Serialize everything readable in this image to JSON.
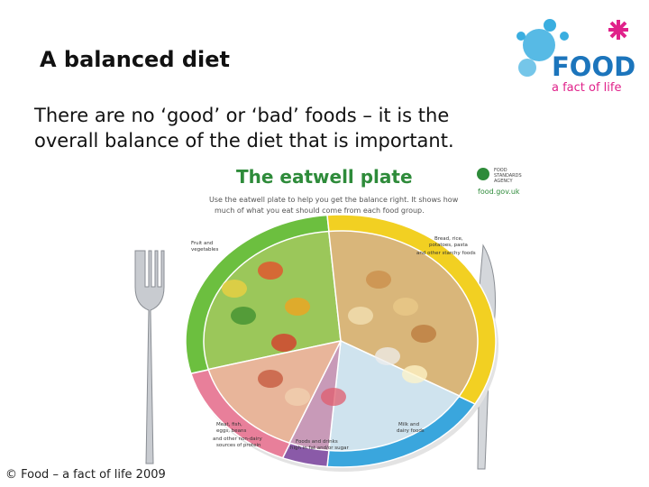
{
  "slide": {
    "title": "A balanced diet",
    "body": [
      "There are no  ‘good’  or  ‘bad’  foods – it is the",
      "overall balance of the diet that is important."
    ],
    "logo": {
      "word": "FOOD",
      "tagline": "a fact of life"
    },
    "plate": {
      "heading": "The eatwell plate",
      "intro": [
        "Use the eatwell plate to help you get the balance right. It shows how",
        "much of what you eat should come from each food group."
      ],
      "agency": [
        "FOOD",
        "STANDARDS",
        "AGENCY"
      ],
      "website": "food.gov.uk",
      "groups": {
        "fruit_veg": [
          "Fruit and",
          "vegetables"
        ],
        "starchy": [
          "Bread, rice,",
          "potatoes, pasta",
          "and other starchy foods"
        ],
        "protein": [
          "Meat, fish,",
          "eggs, beans",
          "and other non-dairy",
          "sources of protein"
        ],
        "dairy": [
          "Milk and",
          "dairy foods"
        ],
        "fat_sugar": [
          "Foods and drinks",
          "high in fat and/or sugar"
        ]
      }
    },
    "footer": "© Food – a fact of life 2009"
  }
}
